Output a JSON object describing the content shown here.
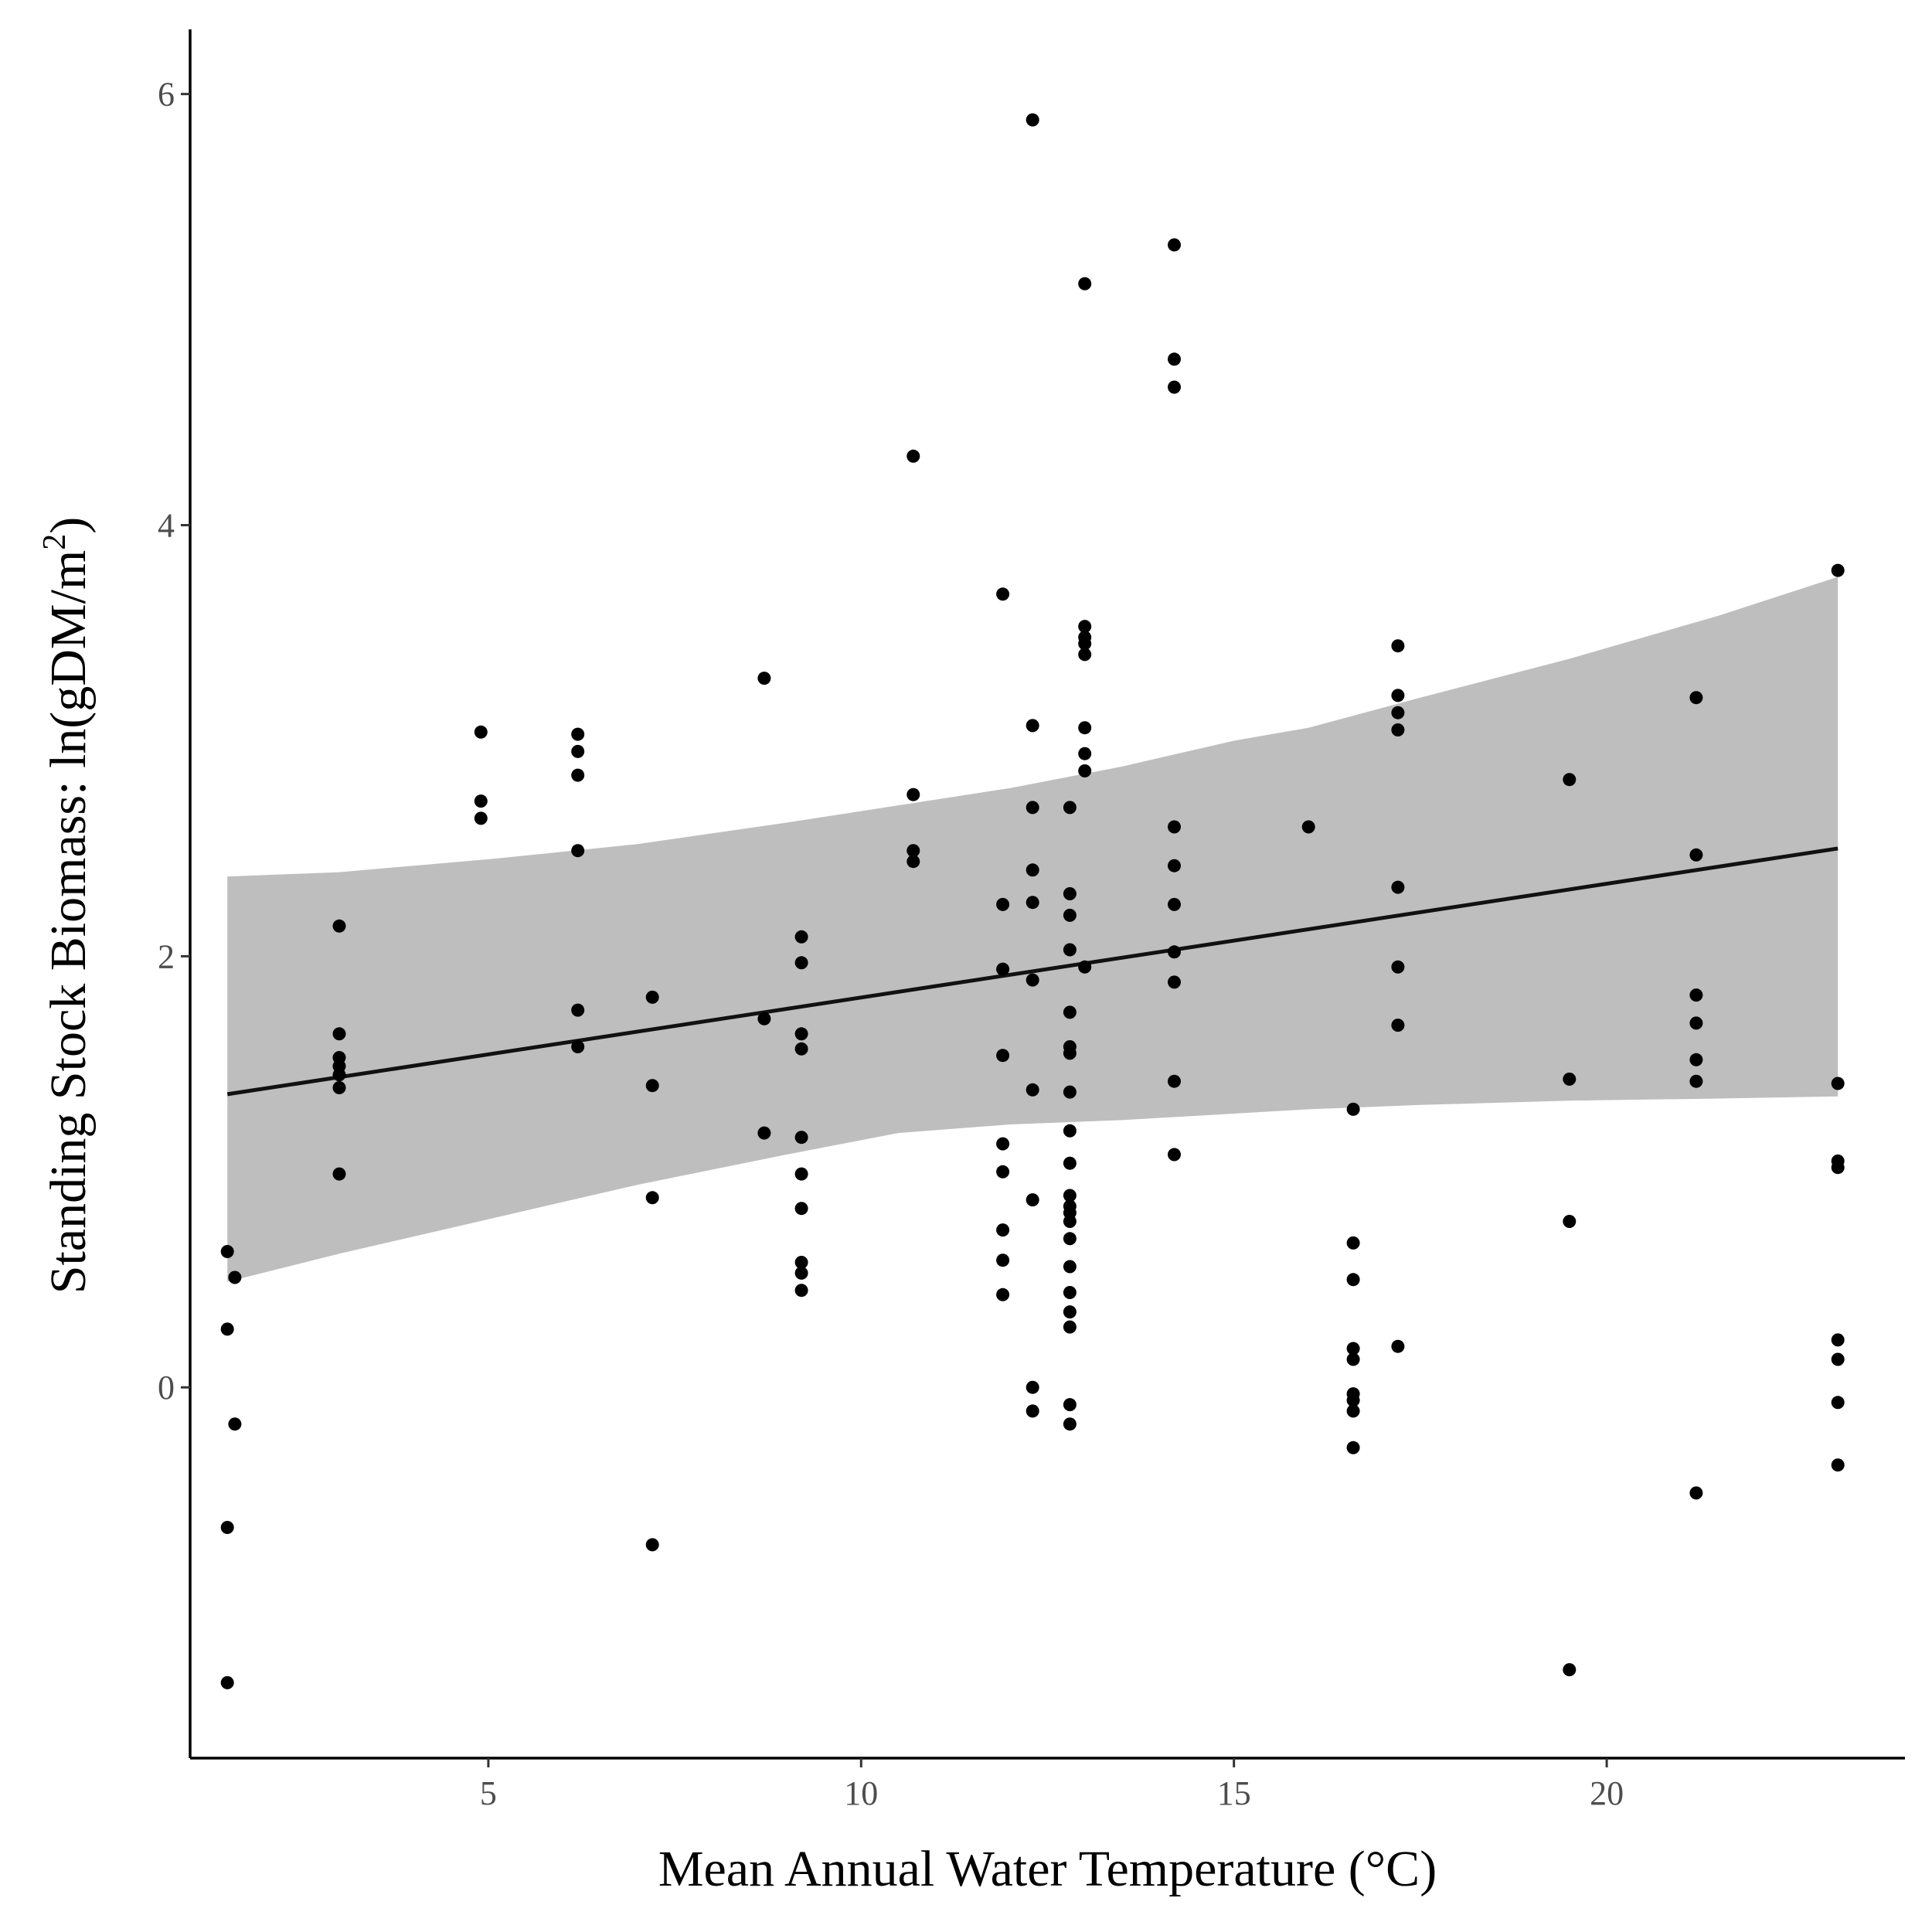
{
  "chart_data": {
    "type": "scatter",
    "xlabel": "Mean Annual Water Temperature (°C)",
    "ylabel_text": "Standing Stock Biomass: ln(gDM/m",
    "ylabel_superscript": "2",
    "ylabel_close": ")",
    "xlim": [
      1.0,
      24.0
    ],
    "ylim": [
      -1.72,
      6.3
    ],
    "xticks": [
      5,
      10,
      15,
      20
    ],
    "yticks": [
      0,
      2,
      4,
      6
    ],
    "grid": false,
    "legend": "none",
    "colors": {
      "points": "#000000",
      "fit_line": "#111111",
      "ribbon": "#bebebe"
    },
    "fit_line": {
      "x": [
        1.5,
        23.1
      ],
      "y": [
        1.36,
        2.5
      ]
    },
    "confidence_band": {
      "x": [
        1.5,
        3.0,
        5.0,
        7.0,
        9.0,
        10.5,
        12.0,
        13.5,
        15.0,
        16.0,
        17.5,
        19.5,
        21.5,
        23.1
      ],
      "upper": [
        2.37,
        2.39,
        2.45,
        2.52,
        2.62,
        2.7,
        2.78,
        2.88,
        3.0,
        3.06,
        3.2,
        3.38,
        3.58,
        3.76
      ],
      "lower": [
        0.49,
        0.62,
        0.78,
        0.94,
        1.08,
        1.18,
        1.22,
        1.24,
        1.27,
        1.29,
        1.31,
        1.33,
        1.34,
        1.35
      ]
    },
    "points": [
      [
        1.5,
        -1.37
      ],
      [
        1.5,
        -0.65
      ],
      [
        1.6,
        -0.17
      ],
      [
        1.5,
        0.27
      ],
      [
        1.6,
        0.51
      ],
      [
        1.5,
        0.63
      ],
      [
        3.0,
        0.99
      ],
      [
        3.0,
        1.39
      ],
      [
        3.0,
        1.45
      ],
      [
        3.0,
        1.49
      ],
      [
        3.0,
        1.53
      ],
      [
        3.0,
        1.64
      ],
      [
        3.0,
        2.14
      ],
      [
        4.9,
        2.64
      ],
      [
        4.9,
        2.72
      ],
      [
        4.9,
        3.04
      ],
      [
        6.2,
        1.58
      ],
      [
        6.2,
        1.75
      ],
      [
        6.2,
        2.49
      ],
      [
        6.2,
        2.84
      ],
      [
        6.2,
        2.95
      ],
      [
        6.2,
        3.03
      ],
      [
        7.2,
        -0.73
      ],
      [
        7.2,
        0.88
      ],
      [
        7.2,
        1.4
      ],
      [
        7.2,
        1.81
      ],
      [
        8.7,
        1.18
      ],
      [
        8.7,
        1.71
      ],
      [
        8.7,
        3.29
      ],
      [
        9.2,
        0.45
      ],
      [
        9.2,
        0.53
      ],
      [
        9.2,
        0.58
      ],
      [
        9.2,
        0.83
      ],
      [
        9.2,
        0.99
      ],
      [
        9.2,
        1.16
      ],
      [
        9.2,
        1.57
      ],
      [
        9.2,
        1.64
      ],
      [
        9.2,
        1.97
      ],
      [
        9.2,
        2.09
      ],
      [
        10.7,
        2.44
      ],
      [
        10.7,
        2.49
      ],
      [
        10.7,
        2.75
      ],
      [
        10.7,
        4.32
      ],
      [
        11.9,
        0.43
      ],
      [
        11.9,
        0.59
      ],
      [
        11.9,
        0.73
      ],
      [
        11.9,
        1.0
      ],
      [
        11.9,
        1.13
      ],
      [
        11.9,
        1.54
      ],
      [
        11.9,
        1.94
      ],
      [
        11.9,
        2.24
      ],
      [
        11.9,
        3.68
      ],
      [
        12.3,
        -0.11
      ],
      [
        12.3,
        0.0
      ],
      [
        12.3,
        0.87
      ],
      [
        12.3,
        1.38
      ],
      [
        12.3,
        1.89
      ],
      [
        12.3,
        2.25
      ],
      [
        12.3,
        2.4
      ],
      [
        12.3,
        2.69
      ],
      [
        12.3,
        3.07
      ],
      [
        12.3,
        5.88
      ],
      [
        12.8,
        -0.17
      ],
      [
        12.8,
        -0.08
      ],
      [
        12.8,
        0.28
      ],
      [
        12.8,
        0.35
      ],
      [
        12.8,
        0.44
      ],
      [
        12.8,
        0.56
      ],
      [
        12.8,
        0.69
      ],
      [
        12.8,
        0.77
      ],
      [
        12.8,
        0.81
      ],
      [
        12.8,
        0.84
      ],
      [
        12.8,
        0.89
      ],
      [
        12.8,
        1.04
      ],
      [
        12.8,
        1.19
      ],
      [
        12.8,
        1.37
      ],
      [
        12.8,
        1.55
      ],
      [
        12.8,
        1.58
      ],
      [
        12.8,
        1.74
      ],
      [
        12.8,
        2.03
      ],
      [
        12.8,
        2.19
      ],
      [
        12.8,
        2.29
      ],
      [
        12.8,
        2.69
      ],
      [
        13.0,
        1.95
      ],
      [
        13.0,
        2.86
      ],
      [
        13.0,
        2.94
      ],
      [
        13.0,
        3.06
      ],
      [
        13.0,
        3.4
      ],
      [
        13.0,
        3.45
      ],
      [
        13.0,
        3.48
      ],
      [
        13.0,
        3.53
      ],
      [
        13.0,
        5.12
      ],
      [
        14.2,
        1.08
      ],
      [
        14.2,
        1.42
      ],
      [
        14.2,
        1.88
      ],
      [
        14.2,
        2.02
      ],
      [
        14.2,
        2.24
      ],
      [
        14.2,
        2.42
      ],
      [
        14.2,
        2.6
      ],
      [
        14.2,
        4.64
      ],
      [
        14.2,
        4.77
      ],
      [
        14.2,
        5.3
      ],
      [
        16.0,
        2.6
      ],
      [
        16.6,
        -0.28
      ],
      [
        16.6,
        -0.11
      ],
      [
        16.6,
        -0.06
      ],
      [
        16.6,
        -0.03
      ],
      [
        16.6,
        0.13
      ],
      [
        16.6,
        0.18
      ],
      [
        16.6,
        0.5
      ],
      [
        16.6,
        0.67
      ],
      [
        16.6,
        1.29
      ],
      [
        17.2,
        0.19
      ],
      [
        17.2,
        1.68
      ],
      [
        17.2,
        1.95
      ],
      [
        17.2,
        2.32
      ],
      [
        17.2,
        3.05
      ],
      [
        17.2,
        3.13
      ],
      [
        17.2,
        3.21
      ],
      [
        17.2,
        3.44
      ],
      [
        19.5,
        -1.31
      ],
      [
        19.5,
        0.77
      ],
      [
        19.5,
        1.43
      ],
      [
        19.5,
        2.82
      ],
      [
        21.2,
        -0.49
      ],
      [
        21.2,
        1.42
      ],
      [
        21.2,
        1.52
      ],
      [
        21.2,
        1.69
      ],
      [
        21.2,
        1.82
      ],
      [
        21.2,
        2.47
      ],
      [
        21.2,
        3.2
      ],
      [
        23.1,
        -0.36
      ],
      [
        23.1,
        -0.07
      ],
      [
        23.1,
        0.13
      ],
      [
        23.1,
        0.22
      ],
      [
        23.1,
        1.02
      ],
      [
        23.1,
        1.05
      ],
      [
        23.1,
        1.41
      ],
      [
        23.1,
        3.79
      ]
    ]
  }
}
